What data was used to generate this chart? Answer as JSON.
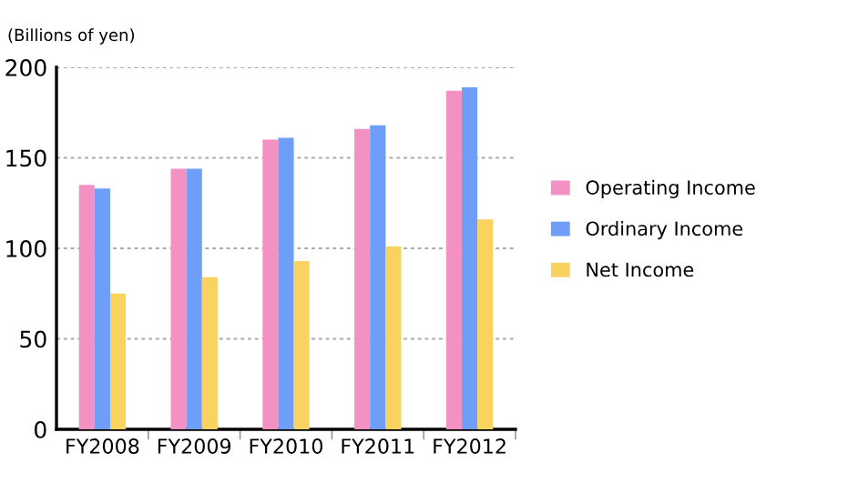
{
  "chart_data": {
    "type": "bar",
    "ylabel": "(Billions of yen)",
    "categories": [
      "FY2008",
      "FY2009",
      "FY2010",
      "FY2011",
      "FY2012"
    ],
    "series": [
      {
        "name": "Operating Income",
        "color": "#f291c2",
        "values": [
          135,
          144,
          160,
          166,
          187
        ]
      },
      {
        "name": "Ordinary Income",
        "color": "#6f9ef8",
        "values": [
          133,
          144,
          161,
          168,
          189
        ]
      },
      {
        "name": "Net Income",
        "color": "#f8d35f",
        "values": [
          75,
          84,
          93,
          101,
          116
        ]
      }
    ],
    "ylim": [
      0,
      200
    ],
    "yticks": [
      0,
      50,
      100,
      150,
      200
    ],
    "grid": "y",
    "legend": "right"
  }
}
